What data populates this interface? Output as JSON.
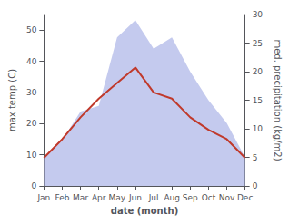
{
  "chart_data": {
    "type": "line",
    "categories": [
      "Jan",
      "Feb",
      "Mar",
      "Apr",
      "May",
      "Jun",
      "Jul",
      "Aug",
      "Sep",
      "Oct",
      "Nov",
      "Dec"
    ],
    "xlabel": "date (month)",
    "ylabel": "max temp (C)",
    "y2label": "med. precipitation (kg/m2)",
    "ylim": [
      0,
      55
    ],
    "yticks": [
      0,
      10,
      20,
      30,
      40,
      50
    ],
    "y2lim": [
      0,
      30
    ],
    "y2ticks": [
      0,
      5,
      10,
      15,
      20,
      25,
      30
    ],
    "grid": false,
    "series": [
      {
        "type": "area",
        "color": "#b0b8e8",
        "axis": "y2",
        "values": [
          5,
          8,
          13,
          14,
          26,
          29,
          24,
          26,
          20,
          15,
          11,
          5
        ]
      },
      {
        "type": "line",
        "color": "#c0392b",
        "values": [
          9,
          15,
          22,
          28,
          33,
          38,
          30,
          28,
          22,
          18,
          15,
          9
        ]
      }
    ]
  }
}
